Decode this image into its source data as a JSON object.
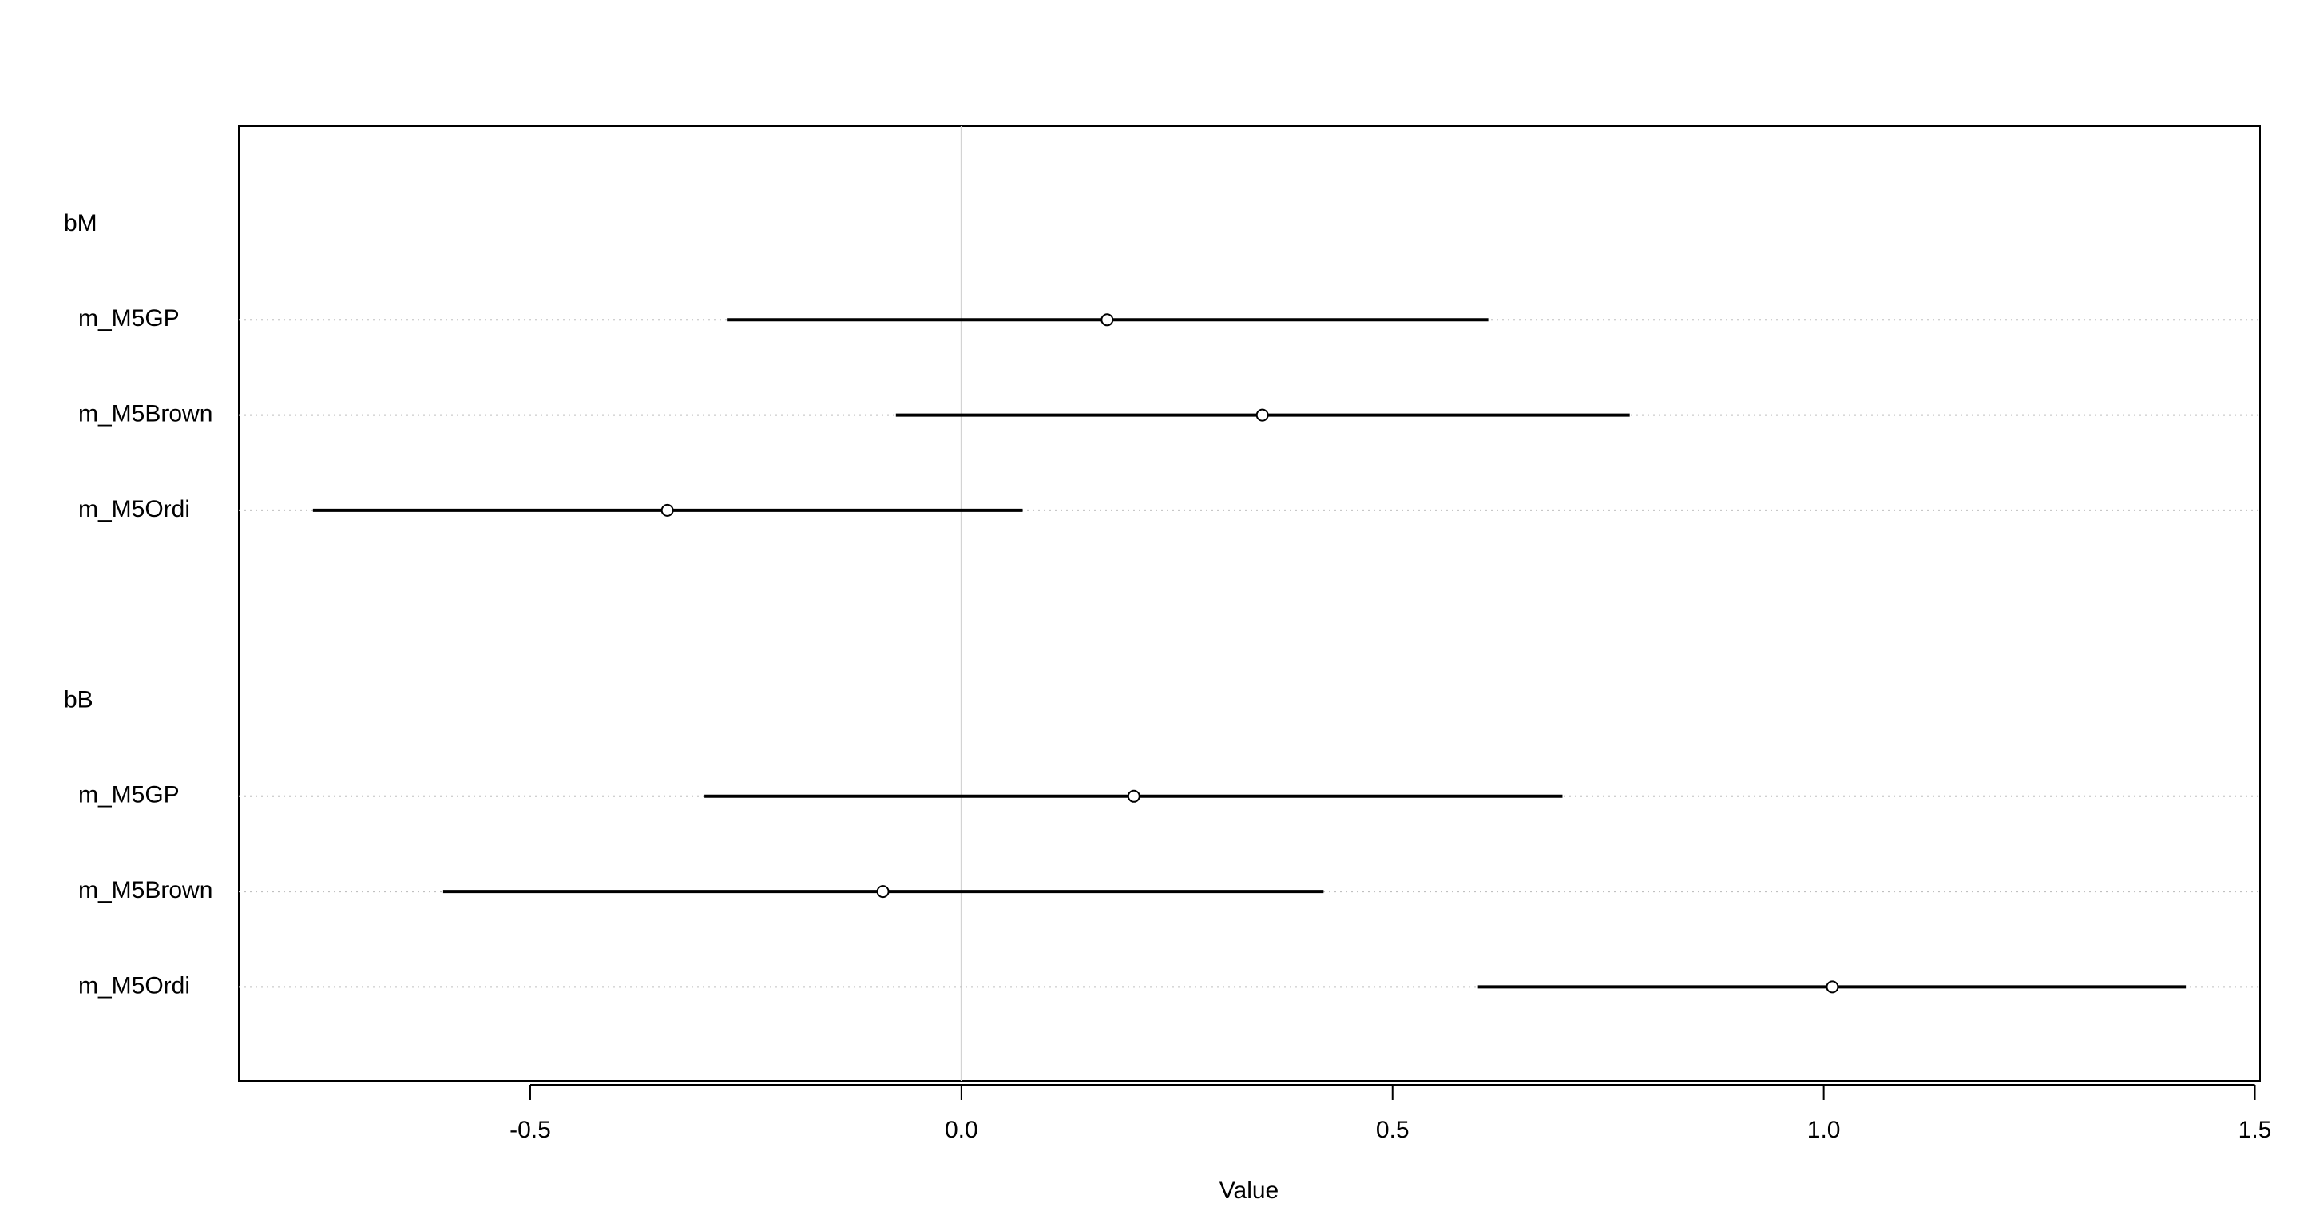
{
  "chart_data": {
    "type": "coeftab",
    "xlabel": "Value",
    "xlim": [
      -0.838,
      1.506
    ],
    "xticks": [
      -0.5,
      {
        "value": 0,
        "label": "0.0"
      },
      0.5,
      {
        "value": 1,
        "label": "1.0"
      },
      1.5
    ],
    "color": "#000000",
    "grid": true,
    "groups": [
      {
        "label": "bM",
        "rows": [
          "m_M5GP",
          "m_M5Brown",
          "m_M5Ordi"
        ],
        "values": [
          0.169,
          0.349,
          -0.341
        ],
        "lower": [
          -0.272,
          -0.076,
          -0.752
        ],
        "upper": [
          0.611,
          0.775,
          0.071
        ]
      },
      {
        "label": "bB",
        "rows": [
          "m_M5GP",
          "m_M5Brown",
          "m_M5Ordi"
        ],
        "values": [
          0.2,
          -0.091,
          1.01
        ],
        "lower": [
          -0.298,
          -0.601,
          0.599
        ],
        "upper": [
          0.697,
          0.42,
          1.42
        ]
      }
    ]
  }
}
